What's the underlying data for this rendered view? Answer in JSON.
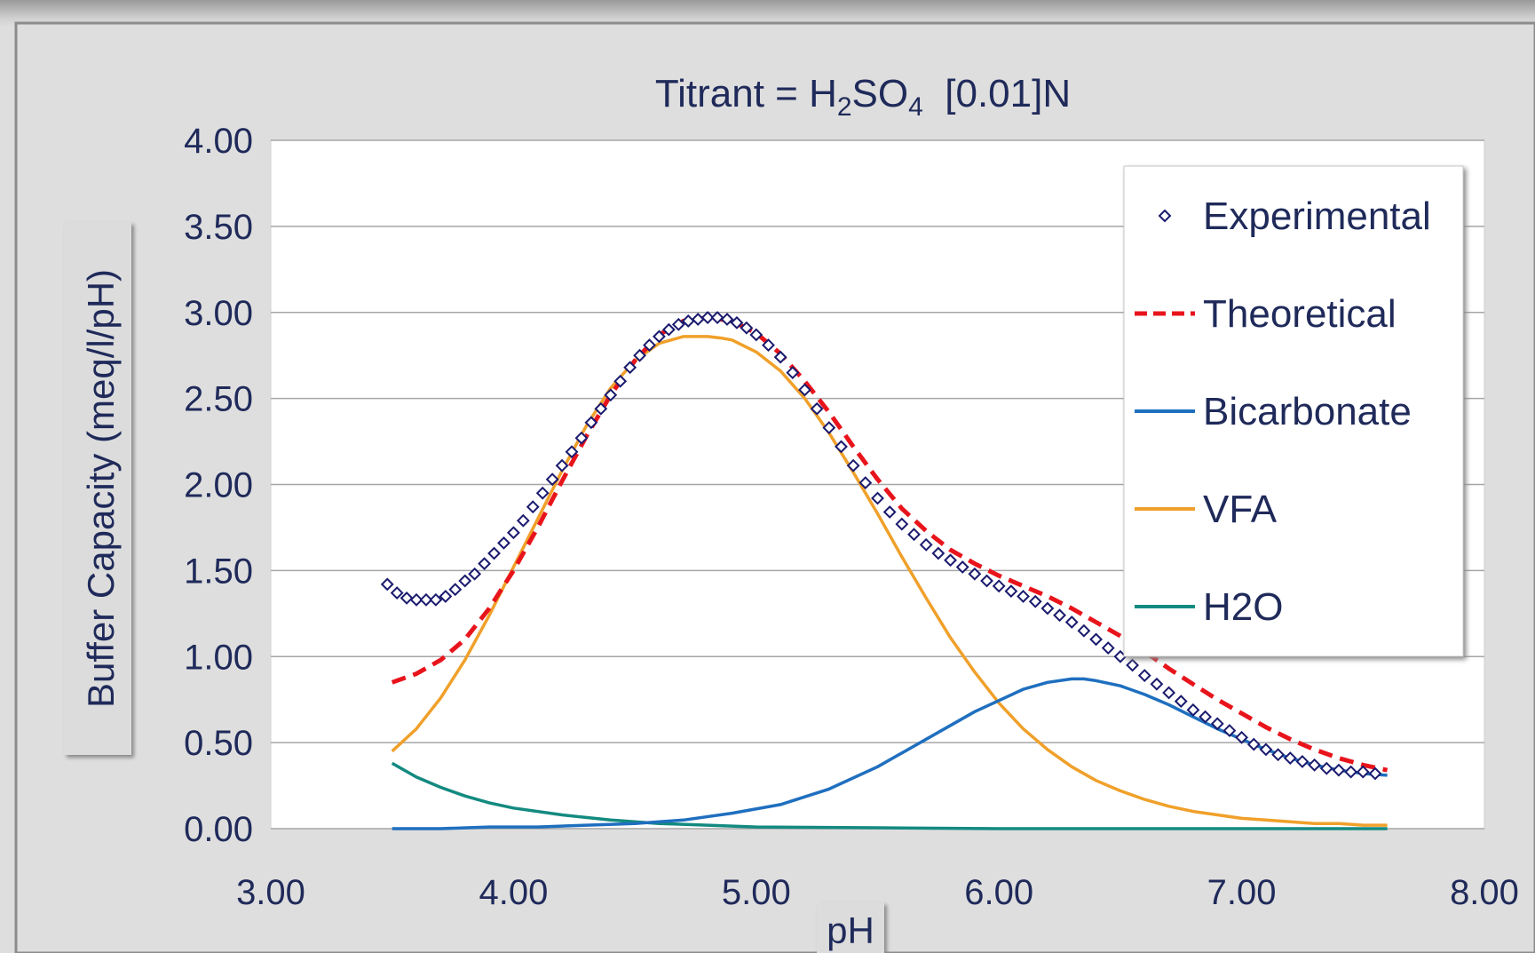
{
  "chart_data": {
    "type": "line",
    "title_parts": {
      "pre": "Titrant = H",
      "sub1": "2",
      "mid": "SO",
      "sub2": "4",
      "post": "  [0.01]N"
    },
    "xlabel": "pH",
    "ylabel": "Buffer Capacity (meq/l/pH)",
    "xlim": [
      3.0,
      8.0
    ],
    "ylim": [
      0.0,
      4.0
    ],
    "xticks": [
      "3.00",
      "4.00",
      "5.00",
      "6.00",
      "7.00",
      "8.00"
    ],
    "yticks": [
      "0.00",
      "0.50",
      "1.00",
      "1.50",
      "2.00",
      "2.50",
      "3.00",
      "3.50",
      "4.00"
    ],
    "grid": "horizontal",
    "legend_position": "top-right",
    "series": [
      {
        "name": "Experimental",
        "style": "markers",
        "marker": "diamond",
        "color": "#1a1a6e",
        "x": [
          3.48,
          3.52,
          3.56,
          3.6,
          3.64,
          3.68,
          3.72,
          3.76,
          3.8,
          3.84,
          3.88,
          3.92,
          3.96,
          4.0,
          4.04,
          4.08,
          4.12,
          4.16,
          4.2,
          4.24,
          4.28,
          4.32,
          4.36,
          4.4,
          4.44,
          4.48,
          4.52,
          4.56,
          4.6,
          4.64,
          4.68,
          4.72,
          4.76,
          4.8,
          4.84,
          4.88,
          4.92,
          4.96,
          5.0,
          5.05,
          5.1,
          5.15,
          5.2,
          5.25,
          5.3,
          5.35,
          5.4,
          5.45,
          5.5,
          5.55,
          5.6,
          5.65,
          5.7,
          5.75,
          5.8,
          5.85,
          5.9,
          5.95,
          6.0,
          6.05,
          6.1,
          6.15,
          6.2,
          6.25,
          6.3,
          6.35,
          6.4,
          6.45,
          6.5,
          6.55,
          6.6,
          6.65,
          6.7,
          6.75,
          6.8,
          6.85,
          6.9,
          6.95,
          7.0,
          7.05,
          7.1,
          7.15,
          7.2,
          7.25,
          7.3,
          7.35,
          7.4,
          7.45,
          7.5,
          7.55
        ],
        "y": [
          1.42,
          1.37,
          1.34,
          1.33,
          1.33,
          1.33,
          1.35,
          1.39,
          1.44,
          1.48,
          1.54,
          1.6,
          1.66,
          1.72,
          1.79,
          1.87,
          1.95,
          2.03,
          2.11,
          2.19,
          2.27,
          2.36,
          2.44,
          2.52,
          2.6,
          2.68,
          2.75,
          2.81,
          2.86,
          2.9,
          2.93,
          2.95,
          2.96,
          2.97,
          2.97,
          2.96,
          2.94,
          2.91,
          2.87,
          2.81,
          2.74,
          2.65,
          2.55,
          2.44,
          2.33,
          2.22,
          2.11,
          2.01,
          1.92,
          1.84,
          1.77,
          1.71,
          1.65,
          1.6,
          1.56,
          1.52,
          1.48,
          1.44,
          1.41,
          1.38,
          1.35,
          1.32,
          1.28,
          1.24,
          1.2,
          1.15,
          1.1,
          1.05,
          1.0,
          0.95,
          0.89,
          0.84,
          0.79,
          0.74,
          0.69,
          0.65,
          0.61,
          0.57,
          0.53,
          0.49,
          0.46,
          0.43,
          0.41,
          0.39,
          0.37,
          0.35,
          0.34,
          0.33,
          0.33,
          0.32
        ]
      },
      {
        "name": "Theoretical",
        "style": "dashed",
        "color": "#e8141c",
        "x": [
          3.5,
          3.6,
          3.7,
          3.8,
          3.9,
          4.0,
          4.1,
          4.2,
          4.3,
          4.4,
          4.5,
          4.6,
          4.7,
          4.8,
          4.9,
          5.0,
          5.1,
          5.2,
          5.3,
          5.4,
          5.5,
          5.6,
          5.7,
          5.8,
          5.9,
          6.0,
          6.1,
          6.2,
          6.3,
          6.4,
          6.5,
          6.6,
          6.7,
          6.8,
          6.9,
          7.0,
          7.1,
          7.2,
          7.3,
          7.4,
          7.5,
          7.6
        ],
        "y": [
          0.85,
          0.9,
          0.98,
          1.1,
          1.28,
          1.5,
          1.75,
          2.02,
          2.28,
          2.52,
          2.72,
          2.87,
          2.95,
          2.97,
          2.95,
          2.88,
          2.76,
          2.6,
          2.42,
          2.22,
          2.03,
          1.86,
          1.73,
          1.62,
          1.54,
          1.47,
          1.41,
          1.35,
          1.28,
          1.2,
          1.12,
          1.03,
          0.93,
          0.84,
          0.75,
          0.67,
          0.59,
          0.52,
          0.46,
          0.41,
          0.37,
          0.34
        ]
      },
      {
        "name": "Bicarbonate",
        "style": "solid",
        "color": "#1f6fbf",
        "x": [
          3.5,
          3.7,
          3.9,
          4.1,
          4.3,
          4.5,
          4.7,
          4.9,
          5.1,
          5.3,
          5.5,
          5.7,
          5.9,
          6.1,
          6.2,
          6.3,
          6.35,
          6.4,
          6.5,
          6.6,
          6.7,
          6.8,
          6.9,
          7.0,
          7.1,
          7.2,
          7.3,
          7.4,
          7.5,
          7.6
        ],
        "y": [
          0.0,
          0.0,
          0.01,
          0.01,
          0.02,
          0.03,
          0.05,
          0.09,
          0.14,
          0.23,
          0.36,
          0.52,
          0.68,
          0.81,
          0.85,
          0.87,
          0.87,
          0.86,
          0.83,
          0.78,
          0.72,
          0.65,
          0.58,
          0.52,
          0.46,
          0.41,
          0.37,
          0.34,
          0.32,
          0.31
        ]
      },
      {
        "name": "VFA",
        "style": "solid",
        "color": "#f0a02a",
        "x": [
          3.5,
          3.6,
          3.7,
          3.8,
          3.9,
          4.0,
          4.1,
          4.2,
          4.3,
          4.4,
          4.5,
          4.6,
          4.7,
          4.8,
          4.86,
          4.9,
          5.0,
          5.1,
          5.2,
          5.3,
          5.4,
          5.5,
          5.6,
          5.7,
          5.8,
          5.9,
          6.0,
          6.1,
          6.2,
          6.3,
          6.4,
          6.5,
          6.6,
          6.7,
          6.8,
          6.9,
          7.0,
          7.1,
          7.2,
          7.3,
          7.4,
          7.5,
          7.6
        ],
        "y": [
          0.45,
          0.58,
          0.76,
          0.98,
          1.24,
          1.52,
          1.8,
          2.08,
          2.34,
          2.56,
          2.72,
          2.82,
          2.86,
          2.86,
          2.85,
          2.84,
          2.77,
          2.66,
          2.5,
          2.3,
          2.07,
          1.83,
          1.58,
          1.34,
          1.11,
          0.91,
          0.73,
          0.58,
          0.46,
          0.36,
          0.28,
          0.22,
          0.17,
          0.13,
          0.1,
          0.08,
          0.06,
          0.05,
          0.04,
          0.03,
          0.03,
          0.02,
          0.02
        ]
      },
      {
        "name": "H2O",
        "style": "solid",
        "color": "#138a80",
        "x": [
          3.5,
          3.6,
          3.7,
          3.8,
          3.9,
          4.0,
          4.2,
          4.4,
          4.6,
          4.8,
          5.0,
          5.5,
          6.0,
          6.5,
          7.0,
          7.6
        ],
        "y": [
          0.38,
          0.3,
          0.24,
          0.19,
          0.15,
          0.12,
          0.08,
          0.05,
          0.03,
          0.02,
          0.01,
          0.005,
          0.0,
          0.0,
          0.0,
          0.0
        ]
      }
    ]
  },
  "colors": {
    "text": "#1f2a5a",
    "plot_background": "#ffffff",
    "frame_background": "#dedede",
    "gridline": "#a6a6a6"
  }
}
